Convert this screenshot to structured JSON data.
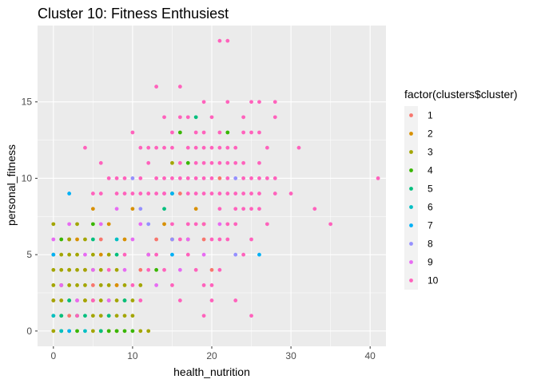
{
  "chart_data": {
    "type": "scatter",
    "title": "Cluster 10: Fitness Enthusiest",
    "xlabel": "health_nutrition",
    "ylabel": "personal_fitness",
    "xlim": [
      -2,
      42
    ],
    "ylim": [
      -1,
      20
    ],
    "x_ticks": [
      0,
      10,
      20,
      30,
      40
    ],
    "y_ticks": [
      0,
      5,
      10,
      15
    ],
    "grid": true,
    "panel_background": "#ebebeb",
    "legend": {
      "title": "factor(clusters$cluster)",
      "placement": "right",
      "entries": [
        {
          "label": "1",
          "color": "#F8766D"
        },
        {
          "label": "2",
          "color": "#D89000"
        },
        {
          "label": "3",
          "color": "#A3A500"
        },
        {
          "label": "4",
          "color": "#39B600"
        },
        {
          "label": "5",
          "color": "#00BF7D"
        },
        {
          "label": "6",
          "color": "#00BFC4"
        },
        {
          "label": "7",
          "color": "#00B0F6"
        },
        {
          "label": "8",
          "color": "#9590FF"
        },
        {
          "label": "9",
          "color": "#E76BF3"
        },
        {
          "label": "10",
          "color": "#FF62BC"
        }
      ]
    },
    "series": [
      {
        "name": "1",
        "points": [
          [
            0,
            2
          ],
          [
            1,
            3
          ],
          [
            2,
            1
          ],
          [
            2,
            6
          ],
          [
            3,
            2
          ],
          [
            4,
            4
          ],
          [
            5,
            3
          ],
          [
            6,
            0
          ],
          [
            6,
            6
          ],
          [
            7,
            1
          ],
          [
            8,
            3
          ],
          [
            11,
            4
          ],
          [
            13,
            6
          ],
          [
            16,
            9
          ],
          [
            19,
            6
          ],
          [
            20,
            4
          ],
          [
            21,
            10
          ]
        ]
      },
      {
        "name": "2",
        "points": [
          [
            1,
            1
          ],
          [
            2,
            4
          ],
          [
            3,
            6
          ],
          [
            4,
            2
          ],
          [
            5,
            8
          ],
          [
            6,
            5
          ],
          [
            7,
            7
          ],
          [
            8,
            3
          ],
          [
            9,
            6
          ],
          [
            10,
            8
          ],
          [
            12,
            5
          ],
          [
            14,
            7
          ],
          [
            15,
            6
          ],
          [
            17,
            6
          ],
          [
            18,
            8
          ],
          [
            19,
            7
          ]
        ]
      },
      {
        "name": "3",
        "points": [
          [
            0,
            0
          ],
          [
            0,
            1
          ],
          [
            0,
            2
          ],
          [
            0,
            3
          ],
          [
            0,
            4
          ],
          [
            0,
            5
          ],
          [
            0,
            7
          ],
          [
            1,
            2
          ],
          [
            1,
            3
          ],
          [
            1,
            4
          ],
          [
            1,
            5
          ],
          [
            2,
            0
          ],
          [
            2,
            2
          ],
          [
            2,
            3
          ],
          [
            2,
            4
          ],
          [
            2,
            5
          ],
          [
            2,
            6
          ],
          [
            3,
            1
          ],
          [
            3,
            3
          ],
          [
            3,
            4
          ],
          [
            3,
            5
          ],
          [
            3,
            7
          ],
          [
            4,
            2
          ],
          [
            4,
            3
          ],
          [
            4,
            4
          ],
          [
            4,
            6
          ],
          [
            5,
            0
          ],
          [
            5,
            1
          ],
          [
            5,
            2
          ],
          [
            5,
            4
          ],
          [
            5,
            5
          ],
          [
            6,
            1
          ],
          [
            6,
            2
          ],
          [
            6,
            3
          ],
          [
            6,
            4
          ],
          [
            7,
            0
          ],
          [
            7,
            2
          ],
          [
            7,
            3
          ],
          [
            7,
            5
          ],
          [
            8,
            0
          ],
          [
            8,
            1
          ],
          [
            8,
            2
          ],
          [
            8,
            4
          ],
          [
            9,
            1
          ],
          [
            9,
            2
          ],
          [
            9,
            3
          ],
          [
            10,
            1
          ],
          [
            10,
            2
          ],
          [
            11,
            0
          ],
          [
            11,
            3
          ],
          [
            12,
            0
          ],
          [
            15,
            11
          ]
        ]
      },
      {
        "name": "4",
        "points": [
          [
            1,
            0
          ],
          [
            1,
            6
          ],
          [
            3,
            0
          ],
          [
            5,
            7
          ],
          [
            6,
            0
          ],
          [
            7,
            0
          ],
          [
            8,
            0
          ],
          [
            9,
            0
          ],
          [
            10,
            0
          ],
          [
            13,
            4
          ],
          [
            15,
            9
          ],
          [
            16,
            13
          ],
          [
            17,
            11
          ],
          [
            22,
            13
          ]
        ]
      },
      {
        "name": "5",
        "points": [
          [
            1,
            1
          ],
          [
            2,
            2
          ],
          [
            4,
            1
          ],
          [
            5,
            6
          ],
          [
            6,
            0
          ],
          [
            7,
            1
          ],
          [
            8,
            5
          ],
          [
            9,
            2
          ],
          [
            14,
            8
          ],
          [
            18,
            14
          ]
        ]
      },
      {
        "name": "6",
        "points": [
          [
            0,
            1
          ],
          [
            1,
            0
          ],
          [
            3,
            1
          ],
          [
            4,
            0
          ],
          [
            8,
            6
          ]
        ]
      },
      {
        "name": "7",
        "points": [
          [
            0,
            5
          ],
          [
            2,
            0
          ],
          [
            2,
            9
          ],
          [
            15,
            9
          ],
          [
            15,
            5
          ],
          [
            26,
            5
          ]
        ]
      },
      {
        "name": "8",
        "points": [
          [
            10,
            10
          ],
          [
            11,
            8
          ],
          [
            12,
            7
          ],
          [
            15,
            6
          ],
          [
            23,
            10
          ],
          [
            23,
            5
          ]
        ]
      },
      {
        "name": "9",
        "points": [
          [
            0,
            6
          ],
          [
            1,
            3
          ],
          [
            2,
            7
          ],
          [
            3,
            2
          ],
          [
            4,
            5
          ],
          [
            5,
            4
          ],
          [
            6,
            7
          ],
          [
            7,
            2
          ],
          [
            8,
            8
          ],
          [
            9,
            4
          ],
          [
            10,
            6
          ],
          [
            11,
            7
          ],
          [
            12,
            5
          ],
          [
            13,
            3
          ],
          [
            14,
            9
          ],
          [
            16,
            4
          ],
          [
            17,
            6
          ],
          [
            19,
            5
          ],
          [
            21,
            7
          ]
        ]
      },
      {
        "name": "10",
        "points": [
          [
            4,
            12
          ],
          [
            5,
            9
          ],
          [
            6,
            9
          ],
          [
            6,
            11
          ],
          [
            7,
            10
          ],
          [
            8,
            9
          ],
          [
            8,
            10
          ],
          [
            9,
            9
          ],
          [
            9,
            10
          ],
          [
            10,
            9
          ],
          [
            10,
            13
          ],
          [
            11,
            9
          ],
          [
            11,
            10
          ],
          [
            11,
            12
          ],
          [
            12,
            9
          ],
          [
            12,
            11
          ],
          [
            12,
            12
          ],
          [
            13,
            9
          ],
          [
            13,
            10
          ],
          [
            13,
            12
          ],
          [
            13,
            16
          ],
          [
            14,
            9
          ],
          [
            14,
            10
          ],
          [
            14,
            12
          ],
          [
            14,
            14
          ],
          [
            15,
            10
          ],
          [
            15,
            12
          ],
          [
            15,
            13
          ],
          [
            16,
            10
          ],
          [
            16,
            11
          ],
          [
            16,
            14
          ],
          [
            16,
            16
          ],
          [
            17,
            9
          ],
          [
            17,
            10
          ],
          [
            17,
            12
          ],
          [
            17,
            14
          ],
          [
            18,
            9
          ],
          [
            18,
            10
          ],
          [
            18,
            11
          ],
          [
            18,
            12
          ],
          [
            18,
            13
          ],
          [
            19,
            9
          ],
          [
            19,
            10
          ],
          [
            19,
            11
          ],
          [
            19,
            12
          ],
          [
            19,
            13
          ],
          [
            19,
            15
          ],
          [
            19,
            1
          ],
          [
            20,
            9
          ],
          [
            20,
            10
          ],
          [
            20,
            11
          ],
          [
            20,
            12
          ],
          [
            20,
            14
          ],
          [
            20,
            3
          ],
          [
            21,
            8
          ],
          [
            21,
            9
          ],
          [
            21,
            11
          ],
          [
            21,
            12
          ],
          [
            21,
            13
          ],
          [
            21,
            19
          ],
          [
            22,
            9
          ],
          [
            22,
            10
          ],
          [
            22,
            11
          ],
          [
            22,
            12
          ],
          [
            22,
            15
          ],
          [
            22,
            19
          ],
          [
            23,
            8
          ],
          [
            23,
            9
          ],
          [
            23,
            11
          ],
          [
            23,
            12
          ],
          [
            23,
            2
          ],
          [
            24,
            9
          ],
          [
            24,
            10
          ],
          [
            24,
            11
          ],
          [
            24,
            13
          ],
          [
            24,
            14
          ],
          [
            25,
            9
          ],
          [
            25,
            10
          ],
          [
            25,
            13
          ],
          [
            25,
            15
          ],
          [
            25,
            1
          ],
          [
            26,
            10
          ],
          [
            26,
            11
          ],
          [
            26,
            13
          ],
          [
            26,
            15
          ],
          [
            27,
            10
          ],
          [
            27,
            12
          ],
          [
            28,
            10
          ],
          [
            28,
            14
          ],
          [
            28,
            15
          ],
          [
            30,
            9
          ],
          [
            31,
            12
          ],
          [
            33,
            8
          ],
          [
            35,
            7
          ],
          [
            41,
            10
          ],
          [
            3,
            1
          ],
          [
            5,
            2
          ],
          [
            7,
            4
          ],
          [
            9,
            5
          ],
          [
            10,
            3
          ],
          [
            11,
            2
          ],
          [
            12,
            4
          ],
          [
            13,
            5
          ],
          [
            14,
            4
          ],
          [
            15,
            3
          ],
          [
            16,
            2
          ],
          [
            17,
            5
          ],
          [
            18,
            4
          ],
          [
            19,
            3
          ],
          [
            20,
            2
          ],
          [
            21,
            4
          ],
          [
            22,
            6
          ],
          [
            23,
            7
          ],
          [
            24,
            8
          ],
          [
            25,
            6
          ],
          [
            26,
            8
          ],
          [
            27,
            7
          ],
          [
            28,
            9
          ],
          [
            24,
            5
          ],
          [
            25,
            8
          ],
          [
            26,
            9
          ],
          [
            19,
            7
          ],
          [
            20,
            6
          ],
          [
            21,
            6
          ],
          [
            22,
            7
          ],
          [
            18,
            7
          ],
          [
            17,
            7
          ],
          [
            16,
            6
          ],
          [
            15,
            7
          ]
        ]
      }
    ]
  }
}
